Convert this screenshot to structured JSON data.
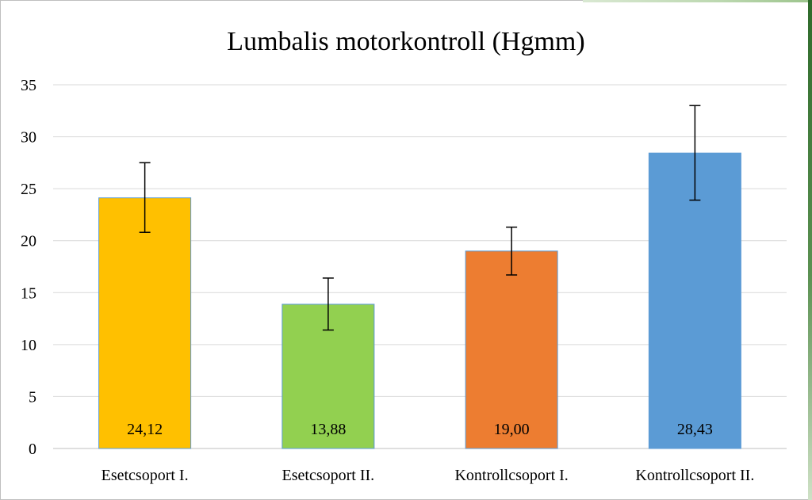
{
  "chart_data": {
    "type": "bar",
    "title": "Lumbalis motorkontroll (Hgmm)",
    "xlabel": "",
    "ylabel": "",
    "categories": [
      "Esetcsoport I.",
      "Esetcsoport II.",
      "Kontrollcsoport I.",
      "Kontrollcsoport II."
    ],
    "values": [
      24.12,
      13.88,
      19.0,
      28.43
    ],
    "data_labels": [
      "24,12",
      "13,88",
      "19,00",
      "28,43"
    ],
    "error_bars": [
      {
        "low": 20.8,
        "high": 27.5
      },
      {
        "low": 11.4,
        "high": 16.4
      },
      {
        "low": 16.7,
        "high": 21.3
      },
      {
        "low": 23.9,
        "high": 33.0
      }
    ],
    "colors": [
      "#ffc000",
      "#92d050",
      "#ed7d31",
      "#5b9bd5"
    ],
    "ylim": [
      0,
      35
    ],
    "yticks": [
      0,
      5,
      10,
      15,
      20,
      25,
      30,
      35
    ],
    "grid": true,
    "legend": "none"
  }
}
